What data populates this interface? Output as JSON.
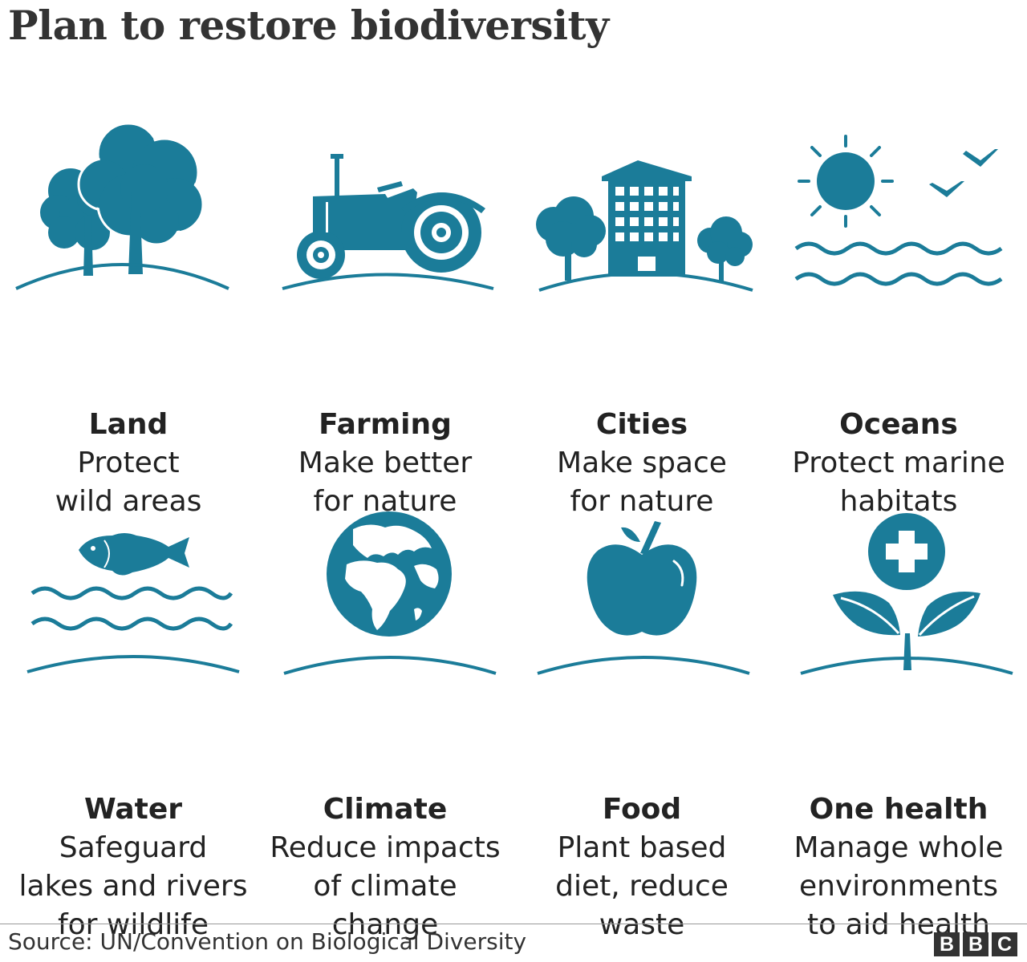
{
  "title": "Plan to restore biodiversity",
  "items": [
    {
      "title": "Land",
      "desc": "Protect\nwild areas",
      "icon": "trees-icon"
    },
    {
      "title": "Farming",
      "desc": "Make better\nfor nature",
      "icon": "tractor-icon"
    },
    {
      "title": "Cities",
      "desc": "Make space\nfor nature",
      "icon": "city-building-icon"
    },
    {
      "title": "Oceans",
      "desc": "Protect marine\nhabitats",
      "icon": "sun-waves-birds-icon"
    },
    {
      "title": "Water",
      "desc": "Safeguard\nlakes and rivers\nfor wildlife",
      "icon": "fish-waves-icon"
    },
    {
      "title": "Climate",
      "desc": "Reduce impacts\nof climate\nchange",
      "icon": "globe-icon"
    },
    {
      "title": "Food",
      "desc": "Plant based\ndiet, reduce\nwaste",
      "icon": "apple-icon"
    },
    {
      "title": "One health",
      "desc": "Manage whole\nenvironments\nto aid health",
      "icon": "health-plant-icon"
    }
  ],
  "source": "Source: UN/Convention on Biological Diversity",
  "logo": [
    "B",
    "B",
    "C"
  ],
  "colors": {
    "icon": "#1b7c99",
    "text": "#222222"
  }
}
